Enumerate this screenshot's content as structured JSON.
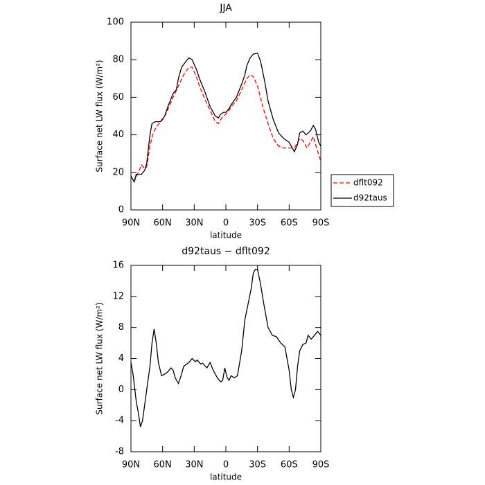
{
  "chart_data": [
    {
      "type": "line",
      "title": "JJA",
      "xlabel": "latitude",
      "ylabel": "Surface net LW flux (W/m²)",
      "xlim": [
        90,
        -90
      ],
      "xticks": [
        {
          "value": 90,
          "label": "90N"
        },
        {
          "value": 60,
          "label": "60N"
        },
        {
          "value": 30,
          "label": "30N"
        },
        0,
        {
          "value": -30,
          "label": "30S"
        },
        {
          "value": -60,
          "label": "60S"
        },
        {
          "value": -90,
          "label": "90S"
        }
      ],
      "ylim": [
        0,
        100
      ],
      "yticks": [
        0,
        20,
        40,
        60,
        80,
        100
      ],
      "legend": "outside-right",
      "series": [
        {
          "name": "dflt092",
          "color": "#ff0000",
          "dash": "dashed",
          "x": [
            90,
            87,
            83,
            80,
            77,
            75,
            72,
            69,
            65,
            60,
            57,
            53,
            50,
            45,
            40,
            35,
            32,
            28,
            25,
            20,
            15,
            10,
            7,
            4,
            2,
            0,
            -3,
            -5,
            -10,
            -15,
            -20,
            -23,
            -26,
            -30,
            -35,
            -40,
            -45,
            -50,
            -55,
            -60,
            -65,
            -70,
            -73,
            -77,
            -80,
            -83,
            -86,
            -90
          ],
          "values": [
            18,
            15,
            20,
            24,
            22,
            23,
            34,
            41,
            45,
            48,
            51,
            56,
            60,
            66,
            72,
            76,
            76,
            71,
            66,
            59,
            53,
            47,
            46,
            49,
            50,
            51,
            53,
            55,
            58,
            64,
            70,
            72,
            71,
            66,
            55,
            46,
            38,
            34,
            33,
            33,
            33,
            38,
            37,
            33,
            36,
            39,
            33,
            26
          ]
        },
        {
          "name": "d92taus",
          "color": "#000000",
          "dash": "solid",
          "x": [
            90,
            87,
            85,
            80,
            77,
            75,
            72,
            70,
            67,
            62,
            58,
            55,
            50,
            47,
            45,
            42,
            38,
            35,
            32,
            28,
            25,
            20,
            15,
            10,
            7,
            5,
            2,
            0,
            -3,
            -5,
            -10,
            -15,
            -18,
            -20,
            -23,
            -26,
            -30,
            -33,
            -37,
            -40,
            -45,
            -50,
            -55,
            -60,
            -65,
            -68,
            -70,
            -73,
            -76,
            -80,
            -83,
            -85,
            -88,
            -90
          ],
          "values": [
            18,
            15,
            19,
            19,
            21,
            25,
            40,
            46,
            47,
            47,
            50,
            55,
            62,
            64,
            70,
            76,
            79,
            81,
            80,
            75,
            70,
            63,
            55,
            50,
            49,
            51,
            52,
            52,
            54,
            56,
            60,
            67,
            72,
            77,
            81,
            83,
            83.5,
            79,
            68,
            58,
            48,
            41,
            38,
            36,
            31,
            35,
            41,
            42,
            40,
            42,
            45,
            43,
            36,
            34
          ]
        }
      ]
    },
    {
      "type": "line",
      "title": "d92taus − dflt092",
      "xlabel": "latitude",
      "ylabel": "Surface net LW flux (W/m²)",
      "xlim": [
        90,
        -90
      ],
      "xticks": [
        {
          "value": 90,
          "label": "90N"
        },
        {
          "value": 60,
          "label": "60N"
        },
        {
          "value": 30,
          "label": "30N"
        },
        0,
        {
          "value": -30,
          "label": "30S"
        },
        {
          "value": -60,
          "label": "60S"
        },
        {
          "value": -90,
          "label": "90S"
        }
      ],
      "ylim": [
        -8,
        16
      ],
      "yticks": [
        -8,
        -4,
        0,
        4,
        8,
        12,
        16
      ],
      "series": [
        {
          "color": "#000000",
          "dash": "solid",
          "x": [
            90,
            88,
            85,
            83,
            81,
            79,
            75,
            72,
            70,
            68,
            66,
            64,
            61,
            58,
            55,
            52,
            50,
            48,
            45,
            42,
            40,
            35,
            32,
            29,
            27,
            24,
            22,
            18,
            15,
            12,
            8,
            5,
            3,
            1,
            -1,
            -3,
            -5,
            -8,
            -11,
            -15,
            -18,
            -21,
            -24,
            -26,
            -28,
            -30,
            -33,
            -36,
            -40,
            -44,
            -48,
            -52,
            -56,
            -60,
            -62,
            -64,
            -66,
            -68,
            -70,
            -73,
            -76,
            -78,
            -81,
            -84,
            -87,
            -90
          ],
          "values": [
            3.5,
            2,
            -1.5,
            -3,
            -4.8,
            -4,
            0,
            3,
            6,
            7.8,
            6,
            3.5,
            1.8,
            2,
            2.3,
            2.8,
            2.5,
            1.5,
            0.8,
            2,
            3,
            3.5,
            4,
            3.6,
            3.8,
            3.3,
            3.4,
            2.8,
            3.5,
            2.5,
            1.5,
            1,
            1.2,
            2.8,
            1.6,
            1.2,
            1.8,
            1.5,
            1.8,
            5,
            9,
            11,
            13,
            15,
            15.5,
            15.5,
            13.5,
            11,
            8,
            7,
            6.8,
            6,
            5.5,
            2.5,
            0,
            -1,
            0,
            3,
            5,
            5.8,
            6,
            7,
            6.5,
            7,
            7.5,
            7
          ]
        }
      ]
    }
  ]
}
